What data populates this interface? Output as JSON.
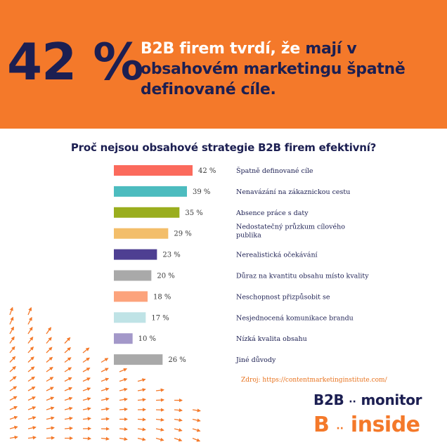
{
  "banner": {
    "stat": "42 %",
    "headline_part1": "B2B firem tvrdí, že ",
    "headline_part2": "mají v obsahovém marketingu špatně definované cíle.",
    "background_color": "#f4792a",
    "text_color": "#1c1f52"
  },
  "chart_data": {
    "type": "bar",
    "orientation": "horizontal",
    "title": "Proč nejsou obsahové strategie B2B firem efektivní?",
    "value_suffix": " %",
    "xlim": [
      0,
      42
    ],
    "categories": [
      "Špatně definované cíle",
      "Nenavázání na zákaznickou cestu",
      "Absence práce s daty",
      "Nedostatečný průzkum cílového publika",
      "Nerealistická očekávání",
      "Důraz na kvantitu obsahu místo kvality",
      "Neschopnost přizpůsobit se",
      "Nesjednocená komunikace brandu",
      "Nízká kvalita obsahu",
      "Jiné důvody"
    ],
    "values": [
      42,
      39,
      35,
      29,
      23,
      20,
      18,
      17,
      10,
      26
    ],
    "colors": [
      "#fb6a5c",
      "#4cbcbf",
      "#9aae1e",
      "#f3be6a",
      "#4e3f92",
      "#a9a9a9",
      "#fca37c",
      "#bfe3e6",
      "#a398c9",
      "#a9a9a9"
    ]
  },
  "source": "Zdroj: https://contentmarketinginstitute.com/",
  "logo": {
    "line1_left": "B2B",
    "line1_right": "monitor",
    "line2_left": "B",
    "line2_right": "inside",
    "dots": "··"
  }
}
